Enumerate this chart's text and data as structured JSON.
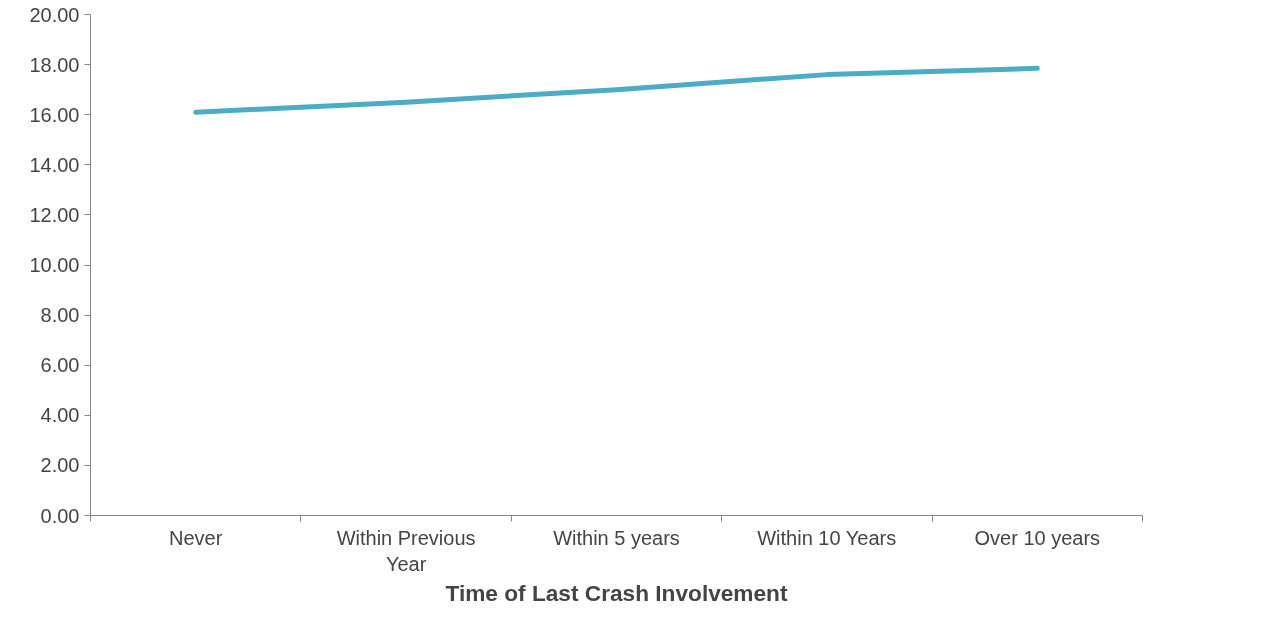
{
  "chart_data": {
    "type": "line",
    "xlabel": "Time of Last Crash Involvement",
    "categories": [
      "Never",
      "Within Previous Year",
      "Within 5 years",
      "Within 10 Years",
      "Over 10 years"
    ],
    "series": [
      {
        "color": "#4bacc6",
        "values": [
          16.1,
          16.5,
          17.0,
          17.6,
          17.85
        ]
      }
    ],
    "ylim": [
      0,
      20
    ],
    "yticks": [
      {
        "value": 0,
        "label": "0.00"
      },
      {
        "value": 2,
        "label": "2.00"
      },
      {
        "value": 4,
        "label": "4.00"
      },
      {
        "value": 6,
        "label": "6.00"
      },
      {
        "value": 8,
        "label": "8.00"
      },
      {
        "value": 10,
        "label": "10.00"
      },
      {
        "value": 12,
        "label": "12.00"
      },
      {
        "value": 14,
        "label": "14.00"
      },
      {
        "value": 16,
        "label": "16.00"
      },
      {
        "value": 18,
        "label": "18.00"
      },
      {
        "value": 20,
        "label": "20.00"
      }
    ],
    "grid": false,
    "marker": "none",
    "line_style": "solid"
  }
}
